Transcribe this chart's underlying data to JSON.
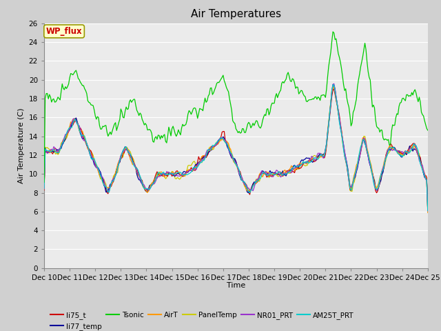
{
  "title": "Air Temperatures",
  "xlabel": "Time",
  "ylabel": "Air Temperature (C)",
  "ylim": [
    0,
    26
  ],
  "yticks": [
    0,
    2,
    4,
    6,
    8,
    10,
    12,
    14,
    16,
    18,
    20,
    22,
    24,
    26
  ],
  "xtick_labels": [
    "Dec 10",
    "Dec 11",
    "Dec 12",
    "Dec 13",
    "Dec 14",
    "Dec 15",
    "Dec 16",
    "Dec 17",
    "Dec 18",
    "Dec 19",
    "Dec 20",
    "Dec 21",
    "Dec 22",
    "Dec 23",
    "Dec 24",
    "Dec 25"
  ],
  "wp_flux_label": "WP_flux",
  "wp_flux_color": "#cc0000",
  "wp_flux_bg": "#ffffcc",
  "series_colors": {
    "li75_t": "#cc0000",
    "li77_temp": "#000099",
    "Tsonic": "#00cc00",
    "AirT": "#ff9900",
    "PanelTemp": "#cccc00",
    "NR01_PRT": "#9933cc",
    "AM25T_PRT": "#00cccc"
  },
  "fig_facecolor": "#d0d0d0",
  "plot_facecolor": "#ebebeb",
  "grid_color": "#ffffff",
  "title_fontsize": 11,
  "legend_fontsize": 7.5,
  "axis_fontsize": 8,
  "tick_fontsize": 7.5
}
